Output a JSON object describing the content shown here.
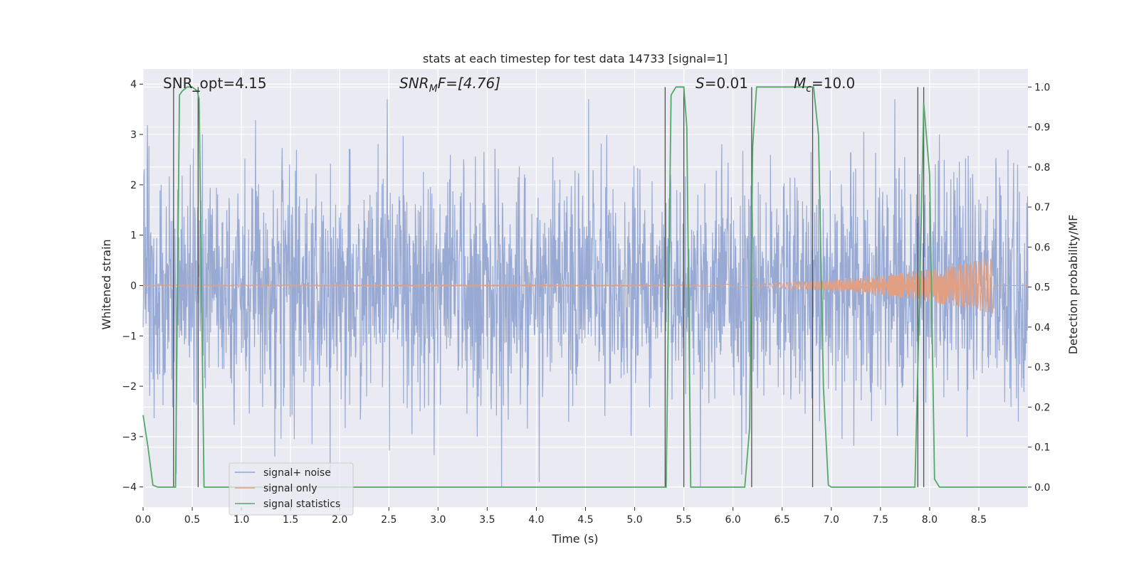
{
  "chart_data": {
    "type": "line",
    "title": "stats at each timestep for test data 14733 [signal=1]",
    "xlabel": "Time (s)",
    "ylabel": "Whitened strain",
    "y2label": "Detection probability/MF",
    "xlim": [
      0.0,
      9.0
    ],
    "ylim": [
      -4.4,
      4.3
    ],
    "y2lim": [
      -0.05,
      1.045
    ],
    "xticks": [
      "0.0",
      "0.5",
      "1.0",
      "1.5",
      "2.0",
      "2.5",
      "3.0",
      "3.5",
      "4.0",
      "4.5",
      "5.0",
      "5.5",
      "6.0",
      "6.5",
      "7.0",
      "7.5",
      "8.0",
      "8.5"
    ],
    "yticks": [
      "4",
      "3",
      "2",
      "1",
      "0",
      "−1",
      "−2",
      "−3",
      "−4"
    ],
    "y2ticks": [
      "1.0",
      "0.9",
      "0.8",
      "0.7",
      "0.6",
      "0.5",
      "0.4",
      "0.3",
      "0.2",
      "0.1",
      "0.0"
    ],
    "grid": true,
    "legend_position": "lower-left",
    "annotations": {
      "snr_opt": "SNR_opt=4.15",
      "snr_mf_base": "SNR",
      "snr_mf_sub": "M",
      "snr_mf_rest": "F=[4.76]",
      "s_var": "S",
      "s_rest": "=0.01",
      "mc_var": "M",
      "mc_sub": "c",
      "mc_rest": "=10.0"
    },
    "series": [
      {
        "name": "signal+ noise",
        "color": "#8fa3cf",
        "description_values": "whitened noise, approx std 1.0, range about -4 to 3.7 over t=0..9 s"
      },
      {
        "name": "signal only",
        "color": "#e1a084",
        "chirp": {
          "start": 4.8,
          "end": 8.65,
          "peak_amplitude": 0.55
        }
      },
      {
        "name": "signal statistics",
        "color": "#55a868",
        "x": [
          0.0,
          0.05,
          0.1,
          0.15,
          0.2,
          0.25,
          0.3,
          0.33,
          0.37,
          0.4,
          0.45,
          0.5,
          0.55,
          0.57,
          0.62,
          0.65,
          0.7,
          1.0,
          2.0,
          3.0,
          4.0,
          5.0,
          5.3,
          5.32,
          5.37,
          5.42,
          5.47,
          5.5,
          5.53,
          5.57,
          5.62,
          5.65,
          6.0,
          6.12,
          6.17,
          6.2,
          6.24,
          6.3,
          6.5,
          6.8,
          6.82,
          6.87,
          6.92,
          6.97,
          7.0,
          7.5,
          7.8,
          7.85,
          7.9,
          7.94,
          8.0,
          8.05,
          8.1,
          8.15,
          8.2,
          8.5,
          8.99
        ],
        "y": [
          0.18,
          0.1,
          0.005,
          0.0,
          0.0,
          0.0,
          0.0,
          0.0,
          0.98,
          0.99,
          1.0,
          1.0,
          0.99,
          0.97,
          0.0,
          0.0,
          0.0,
          0.0,
          0.0,
          0.0,
          0.0,
          0.0,
          0.0,
          0.0,
          0.98,
          1.0,
          1.0,
          1.0,
          0.9,
          0.0,
          0.0,
          0.0,
          0.0,
          0.0,
          0.15,
          0.85,
          1.0,
          1.0,
          1.0,
          1.0,
          1.0,
          0.88,
          0.25,
          0.005,
          0.0,
          0.0,
          0.0,
          0.0,
          0.5,
          0.96,
          0.78,
          0.02,
          0.0,
          0.0,
          0.0,
          0.0,
          0.0
        ]
      }
    ],
    "vertical_lines_x": [
      0.31,
      0.56,
      5.31,
      5.5,
      6.19,
      6.81,
      7.88,
      7.94
    ],
    "legend": {
      "signal_noise": "signal+ noise",
      "signal_only": "signal only",
      "signal_stats": "signal statistics"
    }
  },
  "colors": {
    "background": "#eaeaf2",
    "grid": "#ffffff",
    "noise": "#8fa3cf",
    "signal": "#e1a084",
    "stats": "#55a868",
    "vline": "#505050"
  }
}
